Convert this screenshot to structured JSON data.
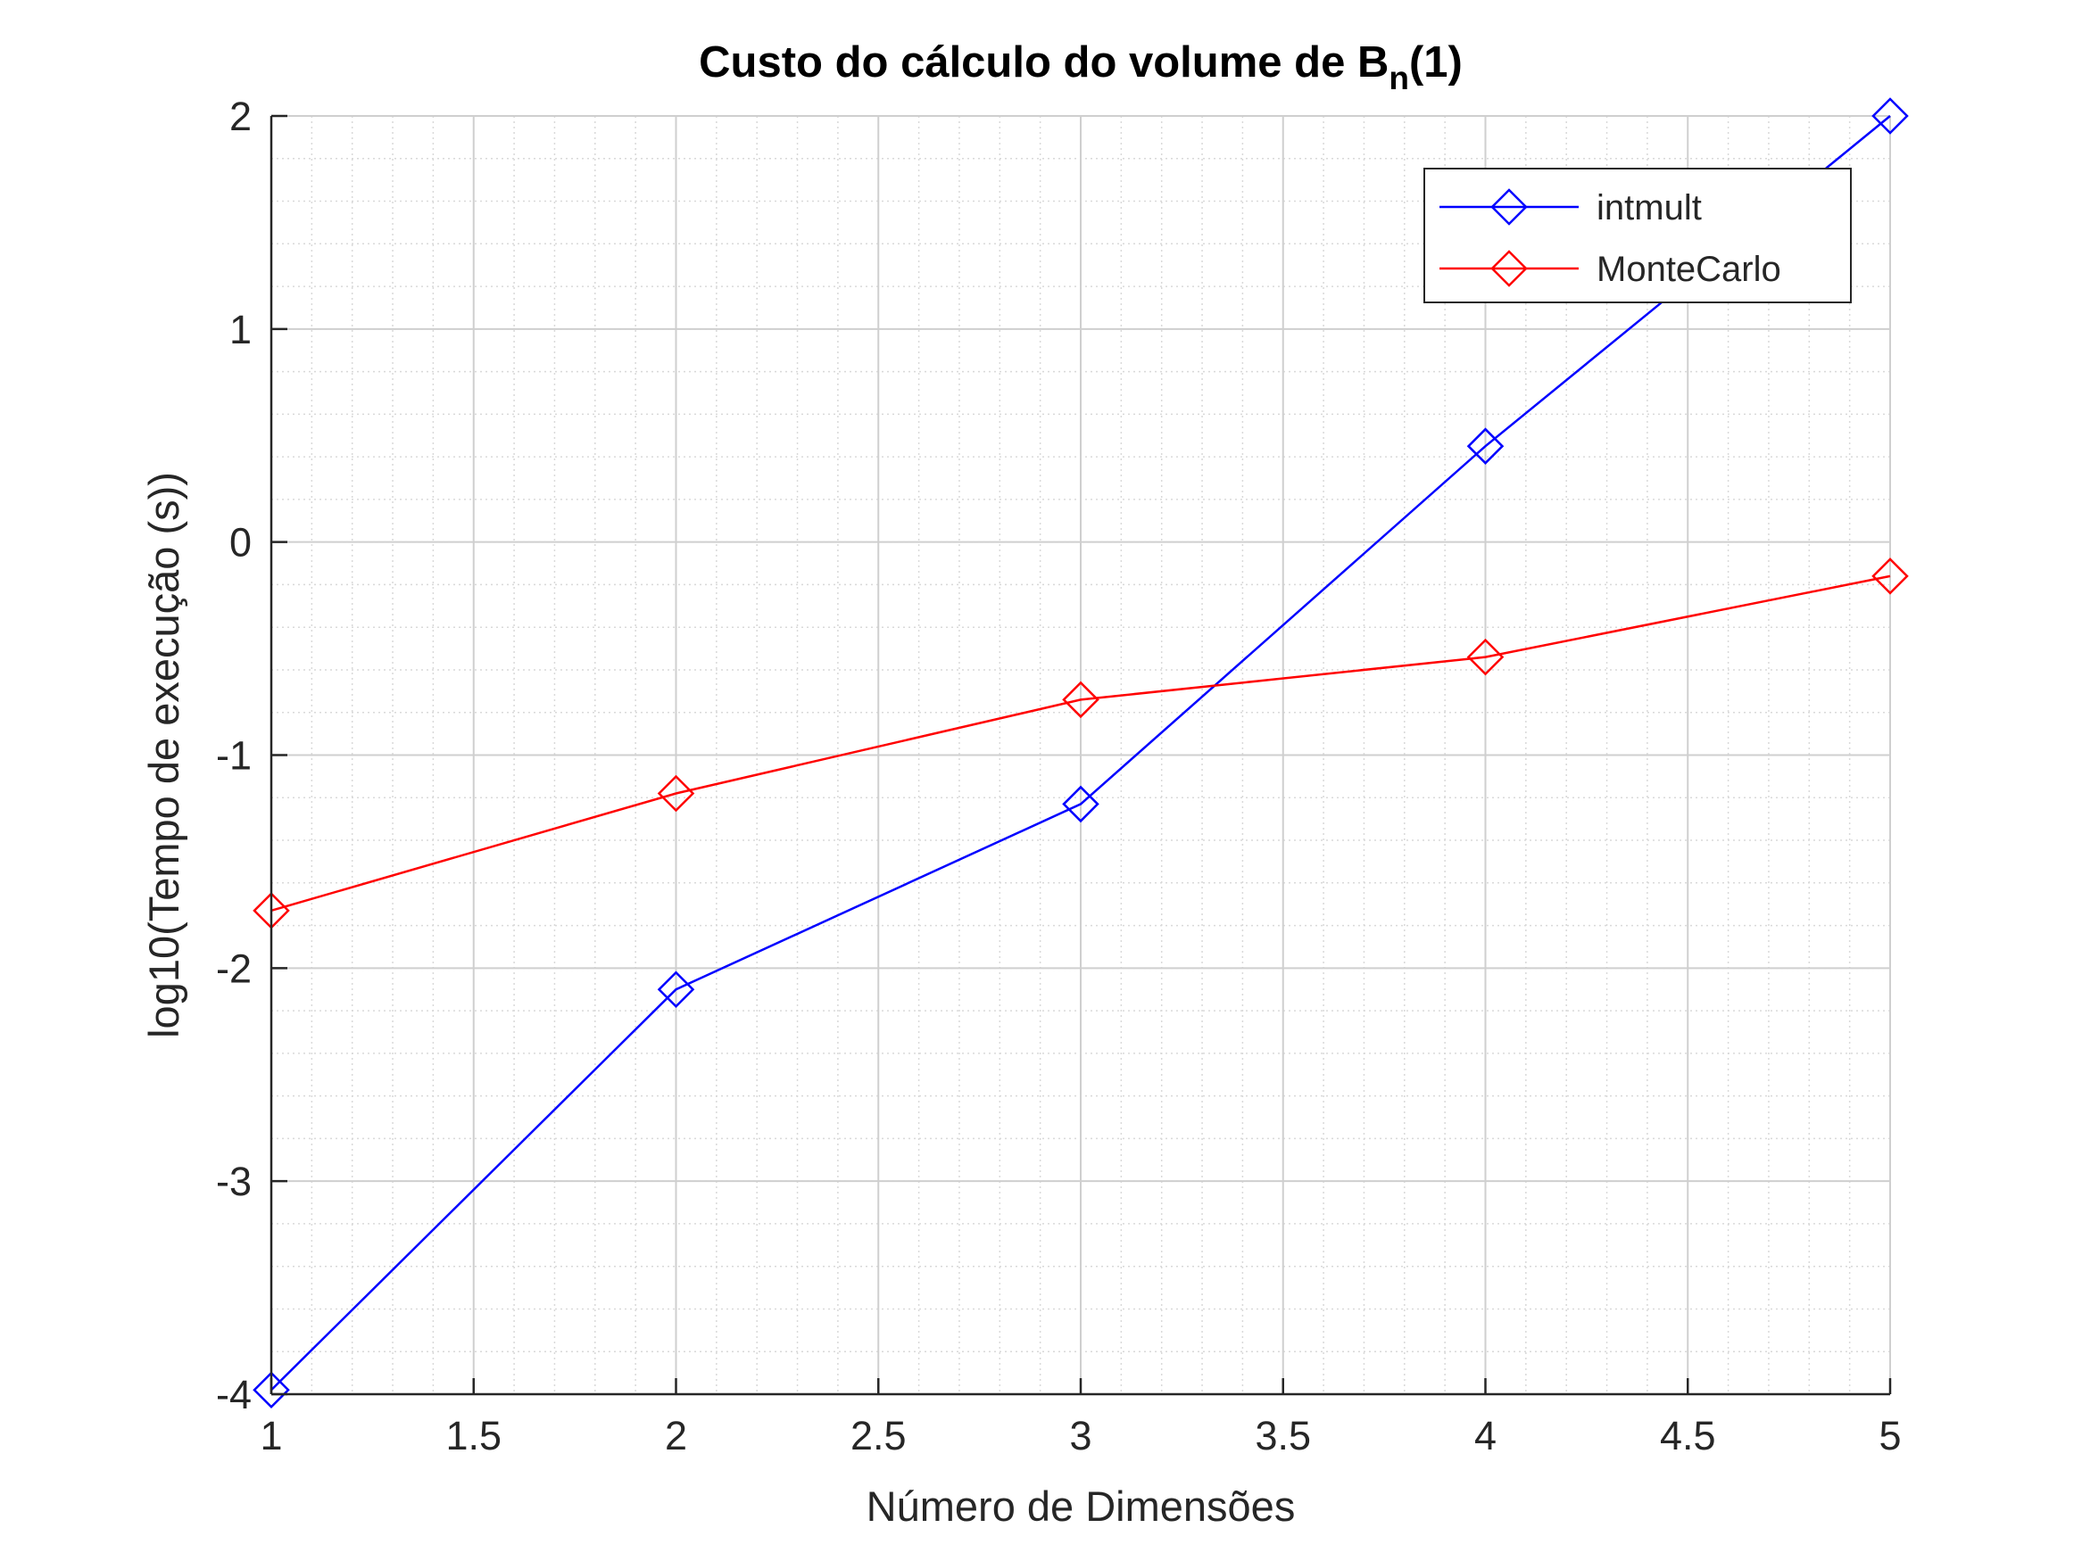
{
  "chart_data": {
    "type": "line",
    "title": "Custo do cálculo do volume de B",
    "title_subscript": "n",
    "title_suffix": "(1)",
    "xlabel": "Número de Dimensões",
    "ylabel": "log10(Tempo de execução (s))",
    "xlim": [
      1,
      5
    ],
    "ylim": [
      -4,
      2
    ],
    "xticks": [
      1,
      1.5,
      2,
      2.5,
      3,
      3.5,
      4,
      4.5,
      5
    ],
    "xtick_labels": [
      "1",
      "1.5",
      "2",
      "2.5",
      "3",
      "3.5",
      "4",
      "4.5",
      "5"
    ],
    "yticks": [
      -4,
      -3,
      -2,
      -1,
      0,
      1,
      2
    ],
    "ytick_labels": [
      "-4",
      "-3",
      "-2",
      "-1",
      "0",
      "1",
      "2"
    ],
    "grid": true,
    "minor_grid": true,
    "legend_position": "top-right",
    "x": [
      1,
      2,
      3,
      4,
      5
    ],
    "series": [
      {
        "name": "intmult",
        "color": "#0000ff",
        "marker": "diamond",
        "values": [
          -3.98,
          -2.1,
          -1.23,
          0.45,
          2.0
        ]
      },
      {
        "name": "MonteCarlo",
        "color": "#ff0000",
        "marker": "diamond",
        "values": [
          -1.73,
          -1.18,
          -0.74,
          -0.54,
          -0.16
        ]
      }
    ]
  }
}
